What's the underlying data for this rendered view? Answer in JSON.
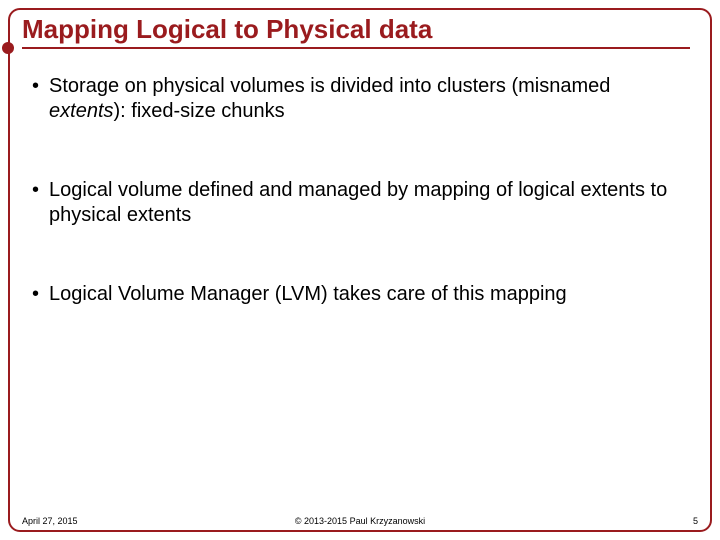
{
  "title": "Mapping Logical to Physical data",
  "bullets": [
    {
      "prefix": "Storage on physical volumes is divided into clusters (misnamed ",
      "italic": "extents",
      "suffix": "): fixed-size chunks"
    },
    {
      "prefix": "Logical volume defined and managed by mapping of logical extents to physical extents",
      "italic": "",
      "suffix": ""
    },
    {
      "prefix": "Logical Volume Manager (LVM) takes care of this mapping",
      "italic": "",
      "suffix": ""
    }
  ],
  "footer": {
    "date": "April 27, 2015",
    "copyright": "© 2013-2015 Paul Krzyzanowski",
    "page": "5"
  },
  "colors": {
    "accent": "#9a1b1e",
    "text": "#000000",
    "background": "#ffffff"
  }
}
